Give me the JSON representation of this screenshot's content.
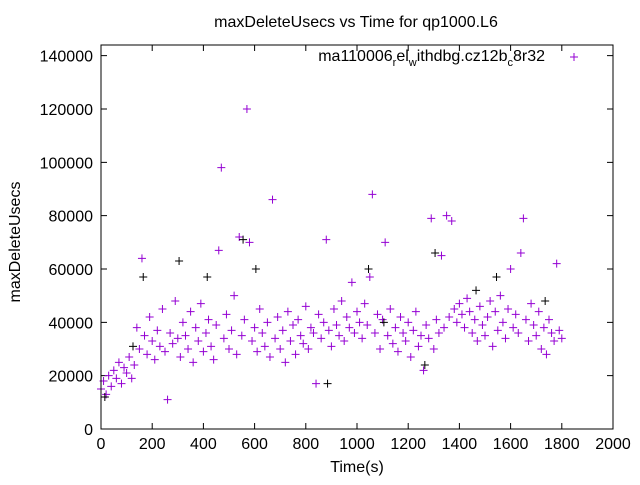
{
  "chart_data": {
    "type": "scatter",
    "title": "maxDeleteUsecs vs Time for qp1000.L6",
    "xlabel": "Time(s)",
    "ylabel": "maxDeleteUsecs",
    "xlim": [
      0,
      2000
    ],
    "ylim": [
      0,
      144000
    ],
    "xticks": [
      0,
      200,
      400,
      600,
      800,
      1000,
      1200,
      1400,
      1600,
      1800,
      2000
    ],
    "yticks": [
      0,
      20000,
      40000,
      60000,
      80000,
      100000,
      120000,
      140000
    ],
    "grid": false,
    "legend_position": "top-right",
    "legend": {
      "main": "ma110006",
      "sub1": "r",
      "mid1": "el",
      "sub2": "w",
      "mid2": "ithdbg.cz12b",
      "sub3": "c",
      "tail": "8r32"
    },
    "series": [
      {
        "name": "ma110006_rel_withdbg.cz12b_c8r32",
        "color": "#9400d3",
        "marker": "+",
        "points": [
          [
            0,
            15000
          ],
          [
            10,
            18000
          ],
          [
            20,
            13000
          ],
          [
            30,
            20000
          ],
          [
            40,
            16000
          ],
          [
            50,
            22000
          ],
          [
            60,
            19000
          ],
          [
            70,
            25000
          ],
          [
            80,
            17000
          ],
          [
            90,
            23000
          ],
          [
            100,
            21000
          ],
          [
            110,
            27000
          ],
          [
            120,
            19000
          ],
          [
            130,
            24000
          ],
          [
            140,
            38000
          ],
          [
            150,
            30000
          ],
          [
            160,
            64000
          ],
          [
            170,
            35000
          ],
          [
            180,
            28000
          ],
          [
            190,
            42000
          ],
          [
            200,
            33000
          ],
          [
            210,
            26000
          ],
          [
            220,
            37000
          ],
          [
            230,
            31000
          ],
          [
            240,
            45000
          ],
          [
            250,
            29000
          ],
          [
            260,
            11000
          ],
          [
            270,
            36000
          ],
          [
            280,
            32000
          ],
          [
            290,
            48000
          ],
          [
            300,
            34000
          ],
          [
            310,
            27000
          ],
          [
            320,
            40000
          ],
          [
            330,
            35000
          ],
          [
            340,
            30000
          ],
          [
            350,
            44000
          ],
          [
            360,
            25000
          ],
          [
            370,
            38000
          ],
          [
            380,
            33000
          ],
          [
            390,
            47000
          ],
          [
            400,
            29000
          ],
          [
            410,
            36000
          ],
          [
            420,
            41000
          ],
          [
            430,
            31000
          ],
          [
            440,
            26000
          ],
          [
            450,
            39000
          ],
          [
            460,
            67000
          ],
          [
            470,
            98000
          ],
          [
            480,
            34000
          ],
          [
            490,
            43000
          ],
          [
            500,
            30000
          ],
          [
            510,
            37000
          ],
          [
            520,
            50000
          ],
          [
            530,
            28000
          ],
          [
            540,
            72000
          ],
          [
            550,
            35000
          ],
          [
            560,
            41000
          ],
          [
            570,
            120000
          ],
          [
            580,
            70000
          ],
          [
            590,
            33000
          ],
          [
            600,
            38000
          ],
          [
            610,
            29000
          ],
          [
            620,
            45000
          ],
          [
            630,
            36000
          ],
          [
            640,
            31000
          ],
          [
            650,
            40000
          ],
          [
            660,
            27000
          ],
          [
            670,
            86000
          ],
          [
            680,
            34000
          ],
          [
            690,
            42000
          ],
          [
            700,
            30000
          ],
          [
            710,
            37000
          ],
          [
            720,
            25000
          ],
          [
            730,
            44000
          ],
          [
            740,
            33000
          ],
          [
            750,
            39000
          ],
          [
            760,
            28000
          ],
          [
            770,
            41000
          ],
          [
            780,
            35000
          ],
          [
            790,
            32000
          ],
          [
            800,
            46000
          ],
          [
            810,
            30000
          ],
          [
            820,
            38000
          ],
          [
            830,
            36000
          ],
          [
            840,
            17000
          ],
          [
            850,
            43000
          ],
          [
            860,
            34000
          ],
          [
            870,
            40000
          ],
          [
            880,
            71000
          ],
          [
            890,
            37000
          ],
          [
            900,
            31000
          ],
          [
            910,
            45000
          ],
          [
            920,
            39000
          ],
          [
            930,
            35000
          ],
          [
            940,
            48000
          ],
          [
            950,
            33000
          ],
          [
            960,
            42000
          ],
          [
            970,
            38000
          ],
          [
            980,
            55000
          ],
          [
            990,
            36000
          ],
          [
            1000,
            44000
          ],
          [
            1010,
            40000
          ],
          [
            1020,
            34000
          ],
          [
            1030,
            47000
          ],
          [
            1040,
            39000
          ],
          [
            1050,
            57000
          ],
          [
            1060,
            88000
          ],
          [
            1070,
            36000
          ],
          [
            1080,
            43000
          ],
          [
            1090,
            30000
          ],
          [
            1100,
            41000
          ],
          [
            1110,
            70000
          ],
          [
            1120,
            35000
          ],
          [
            1130,
            45000
          ],
          [
            1140,
            32000
          ],
          [
            1150,
            38000
          ],
          [
            1160,
            29000
          ],
          [
            1170,
            42000
          ],
          [
            1180,
            36000
          ],
          [
            1190,
            33000
          ],
          [
            1200,
            40000
          ],
          [
            1210,
            27000
          ],
          [
            1220,
            37000
          ],
          [
            1230,
            44000
          ],
          [
            1240,
            31000
          ],
          [
            1250,
            35000
          ],
          [
            1260,
            22000
          ],
          [
            1270,
            39000
          ],
          [
            1280,
            34000
          ],
          [
            1290,
            79000
          ],
          [
            1300,
            30000
          ],
          [
            1310,
            41000
          ],
          [
            1320,
            36000
          ],
          [
            1330,
            65000
          ],
          [
            1340,
            38000
          ],
          [
            1350,
            80000
          ],
          [
            1360,
            42000
          ],
          [
            1370,
            78000
          ],
          [
            1380,
            45000
          ],
          [
            1390,
            40000
          ],
          [
            1400,
            47000
          ],
          [
            1410,
            43000
          ],
          [
            1420,
            38000
          ],
          [
            1430,
            49000
          ],
          [
            1440,
            44000
          ],
          [
            1450,
            36000
          ],
          [
            1460,
            41000
          ],
          [
            1470,
            33000
          ],
          [
            1480,
            46000
          ],
          [
            1490,
            39000
          ],
          [
            1500,
            35000
          ],
          [
            1510,
            42000
          ],
          [
            1520,
            48000
          ],
          [
            1530,
            31000
          ],
          [
            1540,
            44000
          ],
          [
            1550,
            37000
          ],
          [
            1560,
            50000
          ],
          [
            1570,
            40000
          ],
          [
            1580,
            34000
          ],
          [
            1590,
            45000
          ],
          [
            1600,
            60000
          ],
          [
            1610,
            38000
          ],
          [
            1620,
            43000
          ],
          [
            1630,
            36000
          ],
          [
            1640,
            66000
          ],
          [
            1650,
            79000
          ],
          [
            1660,
            41000
          ],
          [
            1670,
            33000
          ],
          [
            1680,
            47000
          ],
          [
            1690,
            39000
          ],
          [
            1700,
            35000
          ],
          [
            1710,
            44000
          ],
          [
            1720,
            30000
          ],
          [
            1730,
            38000
          ],
          [
            1740,
            28000
          ],
          [
            1750,
            41000
          ],
          [
            1760,
            36000
          ],
          [
            1770,
            33000
          ],
          [
            1780,
            62000
          ],
          [
            1790,
            37000
          ],
          [
            1800,
            34000
          ]
        ]
      },
      {
        "name": "",
        "color": "#000000",
        "marker": "+",
        "points": [
          [
            15,
            12000
          ],
          [
            125,
            31000
          ],
          [
            165,
            57000
          ],
          [
            305,
            63000
          ],
          [
            415,
            57000
          ],
          [
            555,
            71000
          ],
          [
            605,
            60000
          ],
          [
            885,
            17000
          ],
          [
            1045,
            60000
          ],
          [
            1105,
            40000
          ],
          [
            1265,
            24000
          ],
          [
            1305,
            66000
          ],
          [
            1465,
            52000
          ],
          [
            1545,
            57000
          ],
          [
            1735,
            48000
          ]
        ]
      }
    ]
  }
}
